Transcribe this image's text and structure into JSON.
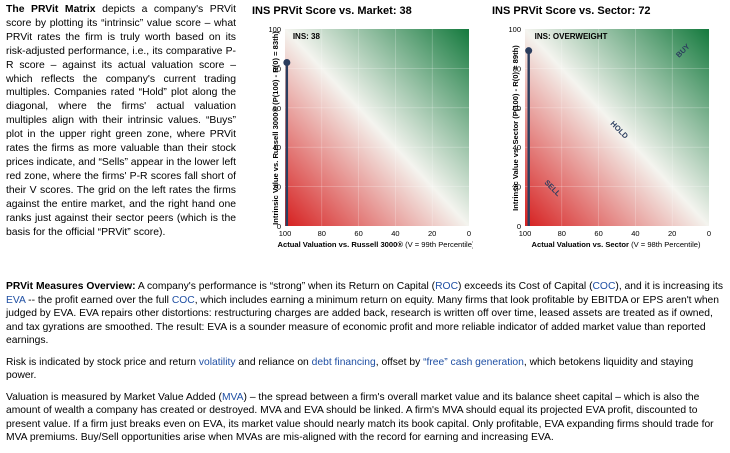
{
  "intro": {
    "lead": "The PRVit Matrix",
    "text": " depicts a company's PRVit score by plotting its “intrinsic” value score – what PRVit rates the firm is truly worth based on its risk-adjusted performance, i.e., its comparative P-R score – against its actual valuation score – which reflects the company's current trading multiples. Companies rated “Hold” plot along the diagonal, where the firms' actual valuation multiples align with their intrinsic values. “Buys” plot in the upper right green zone, where PRVit rates the firms as more valuable than their stock prices indicate, and “Sells” appear in the lower left red zone, where the firms' P-R scores fall short of their V scores. The grid on the left rates the firms against the entire market, and the right hand one ranks just against their sector peers (which is the basis for the official “PRVit” score)."
  },
  "charts": [
    {
      "title": "INS PRVit Score vs. Market: 38",
      "marker_label": "INS: 38",
      "ylabel": "Intrinsic Value vs. Russell 3000® (P(100) - R(0) = 83th)",
      "xlabel_bold": "Actual Valuation vs. Russell 3000®",
      "xlabel_rest": " (V = 99th Percentile)",
      "zone_labels": [],
      "marker_x": 99,
      "marker_y": 83,
      "colors": {
        "green": "#157a3e",
        "white": "#f4f4ef",
        "red": "#d61f1f"
      }
    },
    {
      "title": "INS PRVit Score vs. Sector: 72",
      "marker_label": "INS: OVERWEIGHT",
      "ylabel": "Intrinsic Value vs. Sector (P(100) - R(0) = 89th)",
      "xlabel_bold": "Actual Valuation vs. Sector",
      "xlabel_rest": " (V = 98th Percentile)",
      "zone_labels": [
        "BUY",
        "HOLD",
        "SELL"
      ],
      "marker_x": 98,
      "marker_y": 89,
      "colors": {
        "green": "#157a3e",
        "white": "#f4f4ef",
        "red": "#d61f1f"
      }
    }
  ],
  "axis_ticks": {
    "x": [
      "100",
      "80",
      "60",
      "40",
      "20",
      "0"
    ],
    "y": [
      "100",
      "80",
      "60",
      "40",
      "20",
      "0"
    ]
  },
  "overview": {
    "p1": {
      "lead": "PRVit Measures Overview:",
      "a": " A company's performance is “strong” when its Return on Capital (",
      "roc": "ROC",
      "b": ") exceeds its Cost of Capital (",
      "coc": "COC",
      "c": "), and it is increasing its ",
      "eva": "EVA",
      "d": " -- the profit earned over the full ",
      "coc2": "COC",
      "e": ", which includes earning a minimum return on equity. Many firms that look profitable by EBITDA or EPS aren't when judged by EVA. EVA repairs other distortions: restructuring charges are added back, research is written off over time, leased assets are treated as if owned, and tax gyrations are smoothed. The result: EVA is a sounder measure of economic profit and more reliable indicator of added market value than reported earnings."
    },
    "p2": {
      "a": "Risk is indicated by stock price and return ",
      "vol": "volatility",
      "b": " and reliance on ",
      "debt": "debt financing",
      "c": ", offset by ",
      "free": "“free” cash generation",
      "d": ", which betokens liquidity and staying power."
    },
    "p3": {
      "a": "Valuation is measured by Market Value Added (",
      "mva": "MVA",
      "b": ") – the spread between a firm's overall market value and its balance sheet capital – which is also the amount of wealth a company has created or destroyed. MVA and EVA should be linked. A firm's MVA should equal its projected EVA profit, discounted to present value. If a firm just breaks even on EVA, its market value should nearly match its book capital. Only profitable, EVA expanding firms should trade for MVA premiums. Buy/Sell opportunities arise when MVAs are mis-aligned with the record for earning and increasing EVA."
    }
  }
}
